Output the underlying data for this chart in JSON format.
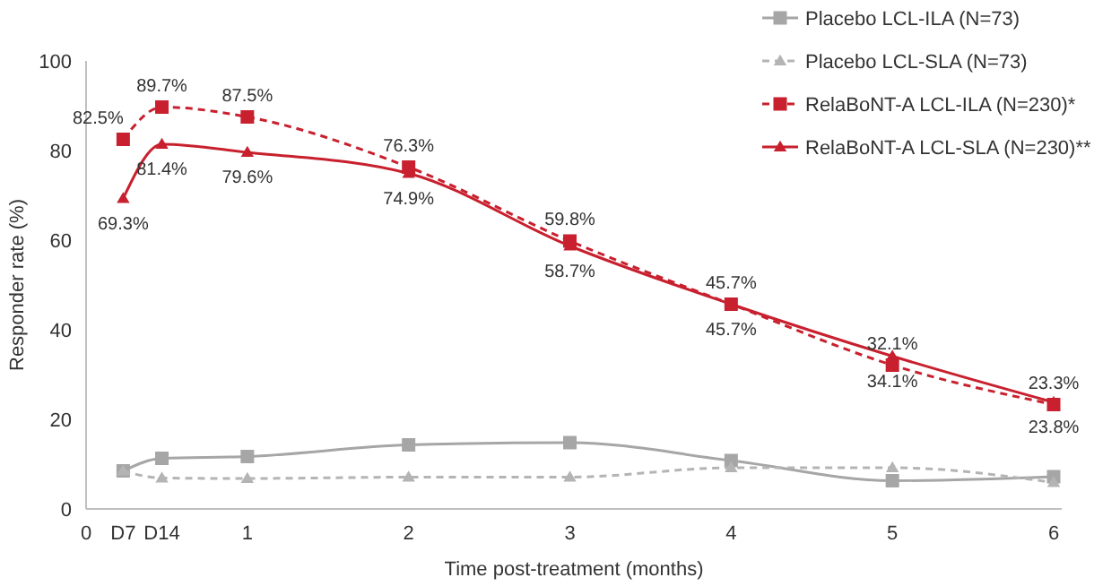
{
  "chart_data": {
    "type": "line",
    "xlabel": "Time post-treatment (months)",
    "ylabel": "Responder rate (%)",
    "x": [
      0.23,
      0.47,
      1,
      2,
      3,
      4,
      5,
      6
    ],
    "xlim": [
      0,
      6.05
    ],
    "xticks": [
      0,
      {
        "value": 0.23,
        "label": "D7"
      },
      {
        "value": 0.47,
        "label": "D14"
      },
      1,
      2,
      3,
      4,
      5,
      6
    ],
    "ylim": [
      0,
      100
    ],
    "yticks": [
      0,
      20,
      40,
      60,
      80,
      100
    ],
    "grid": false,
    "legend": "top right",
    "series": [
      {
        "name": "Placebo LCL-ILA (N=73)",
        "color": "#a6a6a6",
        "marker": "square",
        "line_style": "solid",
        "values": [
          8.5,
          11.3,
          11.7,
          14.3,
          14.8,
          10.8,
          6.3,
          7.2
        ]
      },
      {
        "name": "Placebo LCL-SLA (N=73)",
        "color": "#b4b4b4",
        "marker": "triangle",
        "line_style": "dashed",
        "values": [
          8.5,
          6.9,
          6.8,
          7.1,
          7.1,
          9.2,
          9.2,
          5.9
        ]
      },
      {
        "name": "RelaBoNT-A LCL-ILA (N=230)*",
        "color": "#c8202e",
        "marker": "square",
        "line_style": "dashed",
        "values": [
          82.5,
          89.7,
          87.5,
          76.3,
          59.8,
          45.7,
          32.1,
          23.3
        ],
        "value_labels": [
          "82.5%",
          "89.7%",
          "87.5%",
          "76.3%",
          "59.8%",
          "45.7%",
          "32.1%",
          "23.3%"
        ]
      },
      {
        "name": "RelaBoNT-A LCL-SLA (N=230)**",
        "color": "#c8202e",
        "marker": "triangle",
        "line_style": "solid",
        "values": [
          69.3,
          81.4,
          79.6,
          74.9,
          58.7,
          45.7,
          34.1,
          23.8
        ],
        "value_labels": [
          "69.3%",
          "81.4%",
          "79.6%",
          "74.9%",
          "58.7%",
          "45.7%",
          "34.1%",
          "23.8%"
        ]
      }
    ]
  }
}
